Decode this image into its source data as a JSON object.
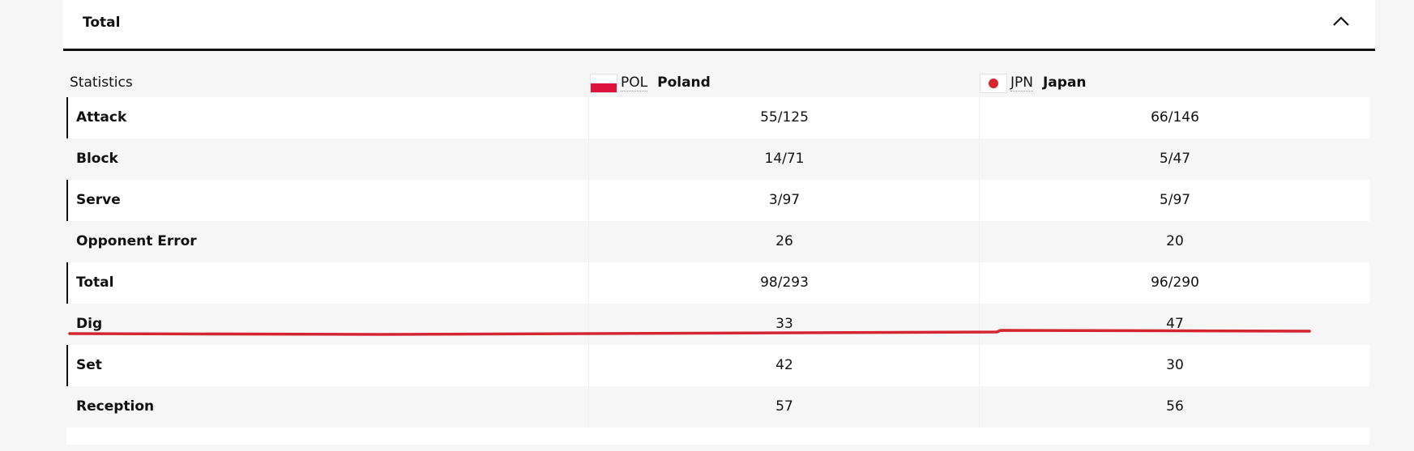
{
  "header": {
    "title": "Total"
  },
  "table": {
    "columns": [
      "Statistics",
      {
        "code": "POL",
        "name": "Poland"
      },
      {
        "code": "JPN",
        "name": "Japan"
      }
    ],
    "rows": [
      [
        "Attack",
        "55/125",
        "66/146"
      ],
      [
        "Block",
        "14/71",
        "5/47"
      ],
      [
        "Serve",
        "3/97",
        "5/97"
      ],
      [
        "Opponent Error",
        "26",
        "20"
      ],
      [
        "Total",
        "98/293",
        "96/290"
      ],
      [
        "Dig",
        "33",
        "47"
      ],
      [
        "Set",
        "42",
        "30"
      ],
      [
        "Reception",
        "57",
        "56"
      ]
    ]
  }
}
